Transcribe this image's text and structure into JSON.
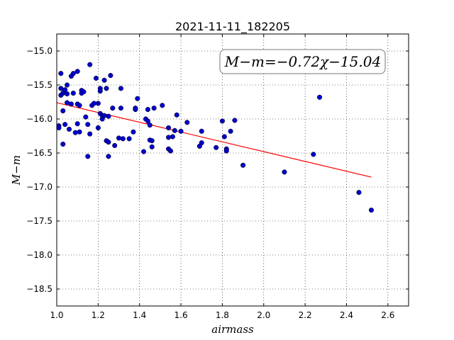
{
  "chart_data": {
    "type": "scatter",
    "title": "2021-11-11_182205",
    "xlabel": "airmass",
    "ylabel": "M−m",
    "xlim": [
      1.0,
      2.7
    ],
    "ylim": [
      -18.75,
      -14.75
    ],
    "xticks": [
      "1.0",
      "1.2",
      "1.4",
      "1.6",
      "1.8",
      "2.0",
      "2.2",
      "2.4",
      "2.6"
    ],
    "yticks": [
      "−15.0",
      "−15.5",
      "−16.0",
      "−16.5",
      "−17.0",
      "−17.5",
      "−18.0",
      "−18.5"
    ],
    "grid": true,
    "annotation": "M−m=−0.72χ−15.04",
    "fit": {
      "slope": -0.72,
      "intercept": -15.04,
      "x_range": [
        1.0,
        2.52
      ],
      "color": "#ff0000"
    },
    "point_color": "#0000cc",
    "points": [
      {
        "x": 1.01,
        "y": -16.1
      },
      {
        "x": 1.01,
        "y": -16.13
      },
      {
        "x": 1.02,
        "y": -15.33
      },
      {
        "x": 1.02,
        "y": -15.55
      },
      {
        "x": 1.02,
        "y": -15.65
      },
      {
        "x": 1.03,
        "y": -15.62
      },
      {
        "x": 1.03,
        "y": -15.88
      },
      {
        "x": 1.03,
        "y": -16.37
      },
      {
        "x": 1.04,
        "y": -15.57
      },
      {
        "x": 1.04,
        "y": -16.08
      },
      {
        "x": 1.05,
        "y": -15.5
      },
      {
        "x": 1.05,
        "y": -15.63
      },
      {
        "x": 1.05,
        "y": -15.76
      },
      {
        "x": 1.06,
        "y": -16.15
      },
      {
        "x": 1.07,
        "y": -15.37
      },
      {
        "x": 1.07,
        "y": -15.78
      },
      {
        "x": 1.08,
        "y": -15.33
      },
      {
        "x": 1.08,
        "y": -15.62
      },
      {
        "x": 1.09,
        "y": -16.2
      },
      {
        "x": 1.1,
        "y": -15.3
      },
      {
        "x": 1.1,
        "y": -15.78
      },
      {
        "x": 1.1,
        "y": -16.07
      },
      {
        "x": 1.11,
        "y": -15.8
      },
      {
        "x": 1.11,
        "y": -16.19
      },
      {
        "x": 1.12,
        "y": -15.58
      },
      {
        "x": 1.12,
        "y": -15.62
      },
      {
        "x": 1.13,
        "y": -15.6
      },
      {
        "x": 1.14,
        "y": -15.97
      },
      {
        "x": 1.15,
        "y": -16.55
      },
      {
        "x": 1.15,
        "y": -16.08
      },
      {
        "x": 1.16,
        "y": -15.2
      },
      {
        "x": 1.16,
        "y": -16.22
      },
      {
        "x": 1.17,
        "y": -15.8
      },
      {
        "x": 1.18,
        "y": -15.77
      },
      {
        "x": 1.19,
        "y": -15.4
      },
      {
        "x": 1.2,
        "y": -15.77
      },
      {
        "x": 1.2,
        "y": -16.13
      },
      {
        "x": 1.21,
        "y": -15.55
      },
      {
        "x": 1.21,
        "y": -15.59
      },
      {
        "x": 1.21,
        "y": -15.92
      },
      {
        "x": 1.22,
        "y": -15.95
      },
      {
        "x": 1.22,
        "y": -16.0
      },
      {
        "x": 1.23,
        "y": -15.43
      },
      {
        "x": 1.23,
        "y": -15.95
      },
      {
        "x": 1.24,
        "y": -15.55
      },
      {
        "x": 1.24,
        "y": -16.32
      },
      {
        "x": 1.25,
        "y": -15.96
      },
      {
        "x": 1.25,
        "y": -16.34
      },
      {
        "x": 1.25,
        "y": -16.55
      },
      {
        "x": 1.26,
        "y": -15.36
      },
      {
        "x": 1.27,
        "y": -15.84
      },
      {
        "x": 1.28,
        "y": -16.39
      },
      {
        "x": 1.3,
        "y": -16.28
      },
      {
        "x": 1.31,
        "y": -15.55
      },
      {
        "x": 1.31,
        "y": -15.84
      },
      {
        "x": 1.32,
        "y": -16.29
      },
      {
        "x": 1.35,
        "y": -16.29
      },
      {
        "x": 1.37,
        "y": -16.19
      },
      {
        "x": 1.38,
        "y": -15.84
      },
      {
        "x": 1.38,
        "y": -15.86
      },
      {
        "x": 1.39,
        "y": -15.7
      },
      {
        "x": 1.42,
        "y": -16.48
      },
      {
        "x": 1.43,
        "y": -16.0
      },
      {
        "x": 1.44,
        "y": -15.86
      },
      {
        "x": 1.44,
        "y": -16.03
      },
      {
        "x": 1.45,
        "y": -16.09
      },
      {
        "x": 1.45,
        "y": -16.31
      },
      {
        "x": 1.46,
        "y": -16.32
      },
      {
        "x": 1.46,
        "y": -16.41
      },
      {
        "x": 1.47,
        "y": -15.84
      },
      {
        "x": 1.51,
        "y": -15.8
      },
      {
        "x": 1.54,
        "y": -16.13
      },
      {
        "x": 1.54,
        "y": -16.27
      },
      {
        "x": 1.54,
        "y": -16.44
      },
      {
        "x": 1.55,
        "y": -16.47
      },
      {
        "x": 1.56,
        "y": -16.26
      },
      {
        "x": 1.57,
        "y": -16.17
      },
      {
        "x": 1.58,
        "y": -15.94
      },
      {
        "x": 1.6,
        "y": -16.18
      },
      {
        "x": 1.63,
        "y": -16.05
      },
      {
        "x": 1.69,
        "y": -16.4
      },
      {
        "x": 1.7,
        "y": -16.18
      },
      {
        "x": 1.7,
        "y": -16.35
      },
      {
        "x": 1.77,
        "y": -16.42
      },
      {
        "x": 1.8,
        "y": -16.03
      },
      {
        "x": 1.81,
        "y": -16.26
      },
      {
        "x": 1.82,
        "y": -16.44
      },
      {
        "x": 1.82,
        "y": -16.47
      },
      {
        "x": 1.84,
        "y": -16.18
      },
      {
        "x": 1.86,
        "y": -16.02
      },
      {
        "x": 1.9,
        "y": -16.68
      },
      {
        "x": 2.1,
        "y": -16.78
      },
      {
        "x": 2.24,
        "y": -16.52
      },
      {
        "x": 2.27,
        "y": -15.68
      },
      {
        "x": 2.46,
        "y": -17.08
      },
      {
        "x": 2.52,
        "y": -17.34
      }
    ]
  }
}
